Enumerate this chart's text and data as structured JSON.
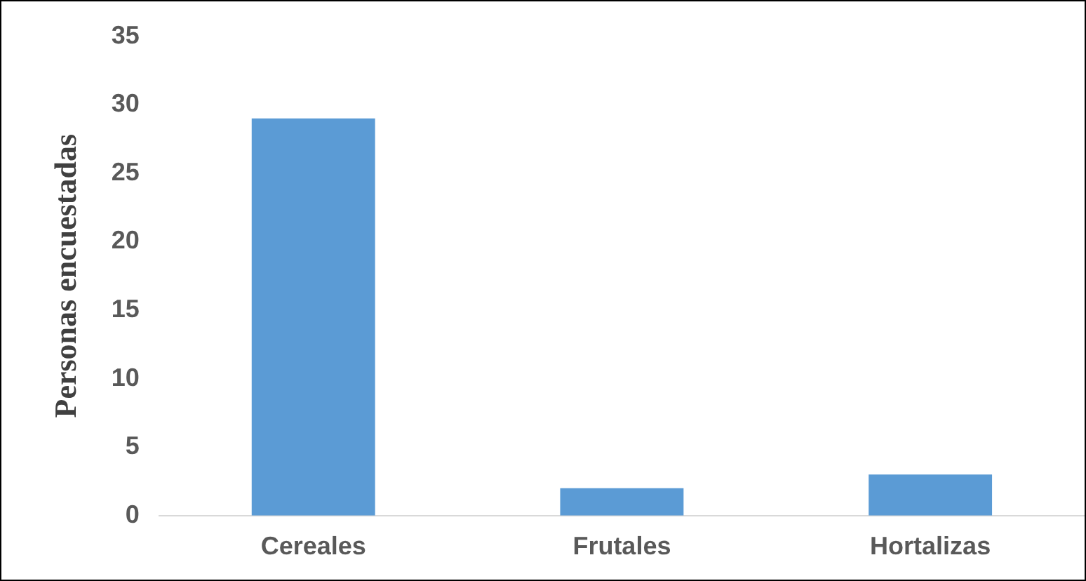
{
  "chart_data": {
    "type": "bar",
    "ylabel": "Personas encuestadas",
    "categories": [
      "Cereales",
      "Frutales",
      "Hortalizas"
    ],
    "values": [
      29,
      2,
      3
    ],
    "color": "#5b9bd5",
    "ylim": [
      0,
      35
    ],
    "yticks": [
      0,
      5,
      10,
      15,
      20,
      25,
      30,
      35
    ],
    "grid": false,
    "legend": false
  }
}
